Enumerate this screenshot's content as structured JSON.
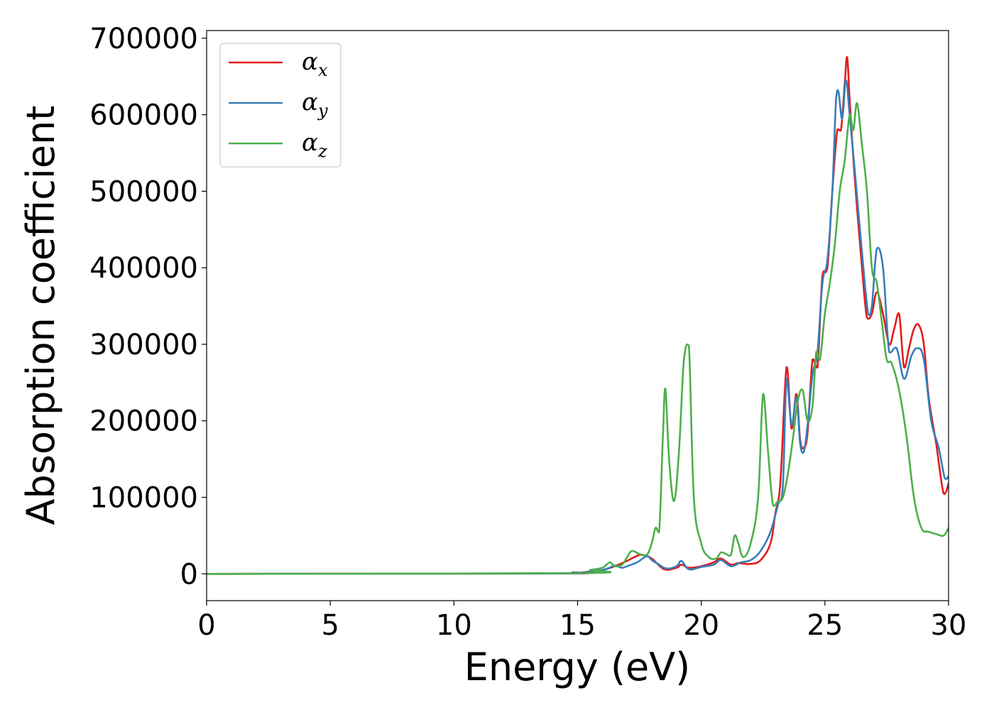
{
  "chart_data": {
    "type": "line",
    "title": "",
    "xlabel": "Energy (eV)",
    "ylabel": "Absorption coefficient",
    "xlim": [
      0,
      30
    ],
    "ylim": [
      -35000,
      710000
    ],
    "xticks": [
      0,
      5,
      10,
      15,
      20,
      25,
      30
    ],
    "yticks": [
      0,
      100000,
      200000,
      300000,
      400000,
      500000,
      600000,
      700000
    ],
    "xtick_labels": [
      "0",
      "5",
      "10",
      "15",
      "20",
      "25",
      "30"
    ],
    "ytick_labels": [
      "0",
      "100000",
      "200000",
      "300000",
      "400000",
      "500000",
      "600000",
      "700000"
    ],
    "grid": false,
    "legend_position": "top-left",
    "series": [
      {
        "name": "α",
        "subscript": "x",
        "color": "#e41a1c",
        "x": [
          0,
          14,
          15,
          15.5,
          16,
          16.5,
          17,
          17.3,
          17.6,
          18,
          18.5,
          19,
          19.2,
          19.5,
          20,
          20.5,
          20.8,
          21.2,
          21.5,
          22,
          22.4,
          22.8,
          23,
          23.2,
          23.45,
          23.65,
          23.85,
          24,
          24.15,
          24.3,
          24.5,
          24.7,
          24.9,
          25.1,
          25.3,
          25.5,
          25.65,
          25.8,
          25.9,
          26,
          26.2,
          26.5,
          26.7,
          26.9,
          27.1,
          27.35,
          27.6,
          27.8,
          28,
          28.2,
          28.4,
          28.6,
          28.8,
          29,
          29.2,
          29.5,
          29.8,
          30
        ],
        "values": [
          0,
          500,
          1500,
          3000,
          5000,
          10000,
          17000,
          22000,
          25000,
          20000,
          6000,
          8000,
          12000,
          8000,
          10000,
          15000,
          20000,
          12000,
          14000,
          13000,
          18000,
          40000,
          80000,
          120000,
          270000,
          190000,
          235000,
          175000,
          165000,
          185000,
          280000,
          270000,
          390000,
          400000,
          500000,
          580000,
          580000,
          640000,
          675000,
          620000,
          520000,
          400000,
          335000,
          340000,
          368000,
          340000,
          300000,
          320000,
          340000,
          270000,
          295000,
          320000,
          325000,
          300000,
          230000,
          170000,
          105000,
          118000
        ]
      },
      {
        "name": "α",
        "subscript": "y",
        "color": "#377eb8",
        "x": [
          0,
          14,
          14.8,
          15.2,
          15.5,
          16,
          16.3,
          16.5,
          16.8,
          17,
          17.4,
          17.8,
          18,
          18.3,
          18.6,
          19,
          19.2,
          19.5,
          20,
          20.5,
          20.8,
          21.2,
          21.6,
          22,
          22.4,
          22.8,
          23.1,
          23.3,
          23.45,
          23.65,
          23.85,
          24,
          24.15,
          24.3,
          24.5,
          24.7,
          24.9,
          25.1,
          25.3,
          25.45,
          25.55,
          25.7,
          25.85,
          26,
          26.2,
          26.5,
          26.75,
          26.9,
          27.1,
          27.35,
          27.6,
          27.9,
          28.2,
          28.5,
          28.75,
          29,
          29.3,
          29.6,
          29.85,
          30
        ],
        "values": [
          0,
          500,
          2000,
          1500,
          3000,
          5000,
          8000,
          11000,
          8000,
          10000,
          15000,
          23000,
          18000,
          12000,
          7000,
          10000,
          17000,
          6000,
          9000,
          12000,
          18000,
          10000,
          15000,
          18000,
          30000,
          55000,
          90000,
          115000,
          255000,
          195000,
          230000,
          170000,
          160000,
          195000,
          260000,
          290000,
          380000,
          410000,
          500000,
          620000,
          630000,
          595000,
          645000,
          600000,
          530000,
          420000,
          340000,
          350000,
          425000,
          400000,
          290000,
          295000,
          255000,
          285000,
          295000,
          280000,
          200000,
          165000,
          125000,
          128000
        ]
      },
      {
        "name": "α",
        "subscript": "z",
        "color": "#4daf4a",
        "x": [
          0,
          15,
          15.5,
          16,
          16.3,
          16.5,
          16.8,
          17,
          17.2,
          17.5,
          17.8,
          18,
          18.15,
          18.3,
          18.45,
          18.55,
          18.7,
          18.9,
          19.1,
          19.3,
          19.5,
          19.7,
          20,
          20.3,
          20.6,
          20.8,
          21,
          21.2,
          21.35,
          21.5,
          21.7,
          22,
          22.3,
          22.5,
          22.7,
          22.9,
          23.1,
          23.3,
          23.5,
          23.7,
          23.9,
          24.1,
          24.3,
          24.5,
          24.65,
          24.8,
          25,
          25.2,
          25.4,
          25.6,
          25.8,
          26,
          26.15,
          26.3,
          26.5,
          26.7,
          26.9,
          27.1,
          27.3,
          27.5,
          27.7,
          28,
          28.3,
          28.6,
          28.9,
          29.2,
          29.5,
          29.8,
          30
        ],
        "values": [
          0,
          1000,
          5000,
          8000,
          15000,
          10000,
          12000,
          22000,
          30000,
          26000,
          25000,
          40000,
          60000,
          55000,
          180000,
          242000,
          150000,
          95000,
          160000,
          280000,
          298000,
          100000,
          40000,
          22000,
          20000,
          28000,
          26000,
          25000,
          50000,
          40000,
          22000,
          40000,
          100000,
          235000,
          160000,
          90000,
          95000,
          100000,
          130000,
          175000,
          225000,
          240000,
          200000,
          220000,
          290000,
          280000,
          340000,
          380000,
          430000,
          500000,
          540000,
          600000,
          580000,
          615000,
          560000,
          500000,
          400000,
          380000,
          330000,
          280000,
          275000,
          240000,
          180000,
          100000,
          60000,
          55000,
          52000,
          50000,
          60000
        ]
      }
    ]
  }
}
